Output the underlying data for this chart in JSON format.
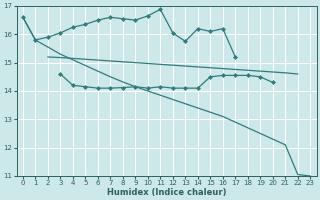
{
  "background_color": "#cce8e8",
  "grid_color": "#ffffff",
  "line_color": "#2d7d7d",
  "xlabel": "Humidex (Indice chaleur)",
  "xlim": [
    -0.5,
    23.5
  ],
  "ylim": [
    11,
    17
  ],
  "xticks": [
    0,
    1,
    2,
    3,
    4,
    5,
    6,
    7,
    8,
    9,
    10,
    11,
    12,
    13,
    14,
    15,
    16,
    17,
    18,
    19,
    20,
    21,
    22,
    23
  ],
  "yticks": [
    11,
    12,
    13,
    14,
    15,
    16,
    17
  ],
  "line1_x": [
    0,
    1,
    2,
    3,
    4,
    5,
    6,
    7,
    8,
    9,
    10,
    11,
    12,
    13,
    14,
    15,
    16,
    17
  ],
  "line1_y": [
    16.6,
    15.8,
    15.9,
    16.05,
    16.25,
    16.35,
    16.5,
    16.6,
    16.55,
    16.5,
    16.65,
    16.88,
    16.05,
    15.75,
    16.2,
    16.1,
    16.2,
    15.2
  ],
  "line2_x": [
    2,
    3,
    4,
    5,
    6,
    7,
    8,
    9,
    10,
    11,
    12,
    13,
    14,
    15,
    16,
    17,
    18,
    19,
    20,
    21,
    22
  ],
  "line2_y": [
    15.2,
    15.18,
    15.15,
    15.12,
    15.09,
    15.06,
    15.03,
    15.0,
    14.97,
    14.94,
    14.91,
    14.88,
    14.85,
    14.82,
    14.79,
    14.76,
    14.73,
    14.7,
    14.67,
    14.64,
    14.6
  ],
  "line3_x": [
    3,
    4,
    5,
    6,
    7,
    8,
    9,
    10,
    11,
    12,
    13,
    14,
    15,
    16,
    17,
    18,
    19,
    20
  ],
  "line3_y": [
    14.6,
    14.2,
    14.15,
    14.1,
    14.1,
    14.12,
    14.15,
    14.1,
    14.15,
    14.1,
    14.1,
    14.1,
    14.5,
    14.55,
    14.55,
    14.55,
    14.5,
    14.3
  ],
  "line4_x": [
    0,
    1,
    2,
    3,
    4,
    5,
    6,
    7,
    8,
    9,
    10,
    11,
    12,
    13,
    14,
    15,
    16,
    17,
    18,
    19,
    20,
    21,
    22,
    23
  ],
  "line4_y": [
    16.6,
    15.8,
    15.55,
    15.3,
    15.1,
    14.9,
    14.7,
    14.5,
    14.32,
    14.15,
    14.0,
    13.85,
    13.7,
    13.55,
    13.4,
    13.25,
    13.1,
    12.9,
    12.7,
    12.5,
    12.3,
    12.1,
    11.05,
    11.0
  ]
}
